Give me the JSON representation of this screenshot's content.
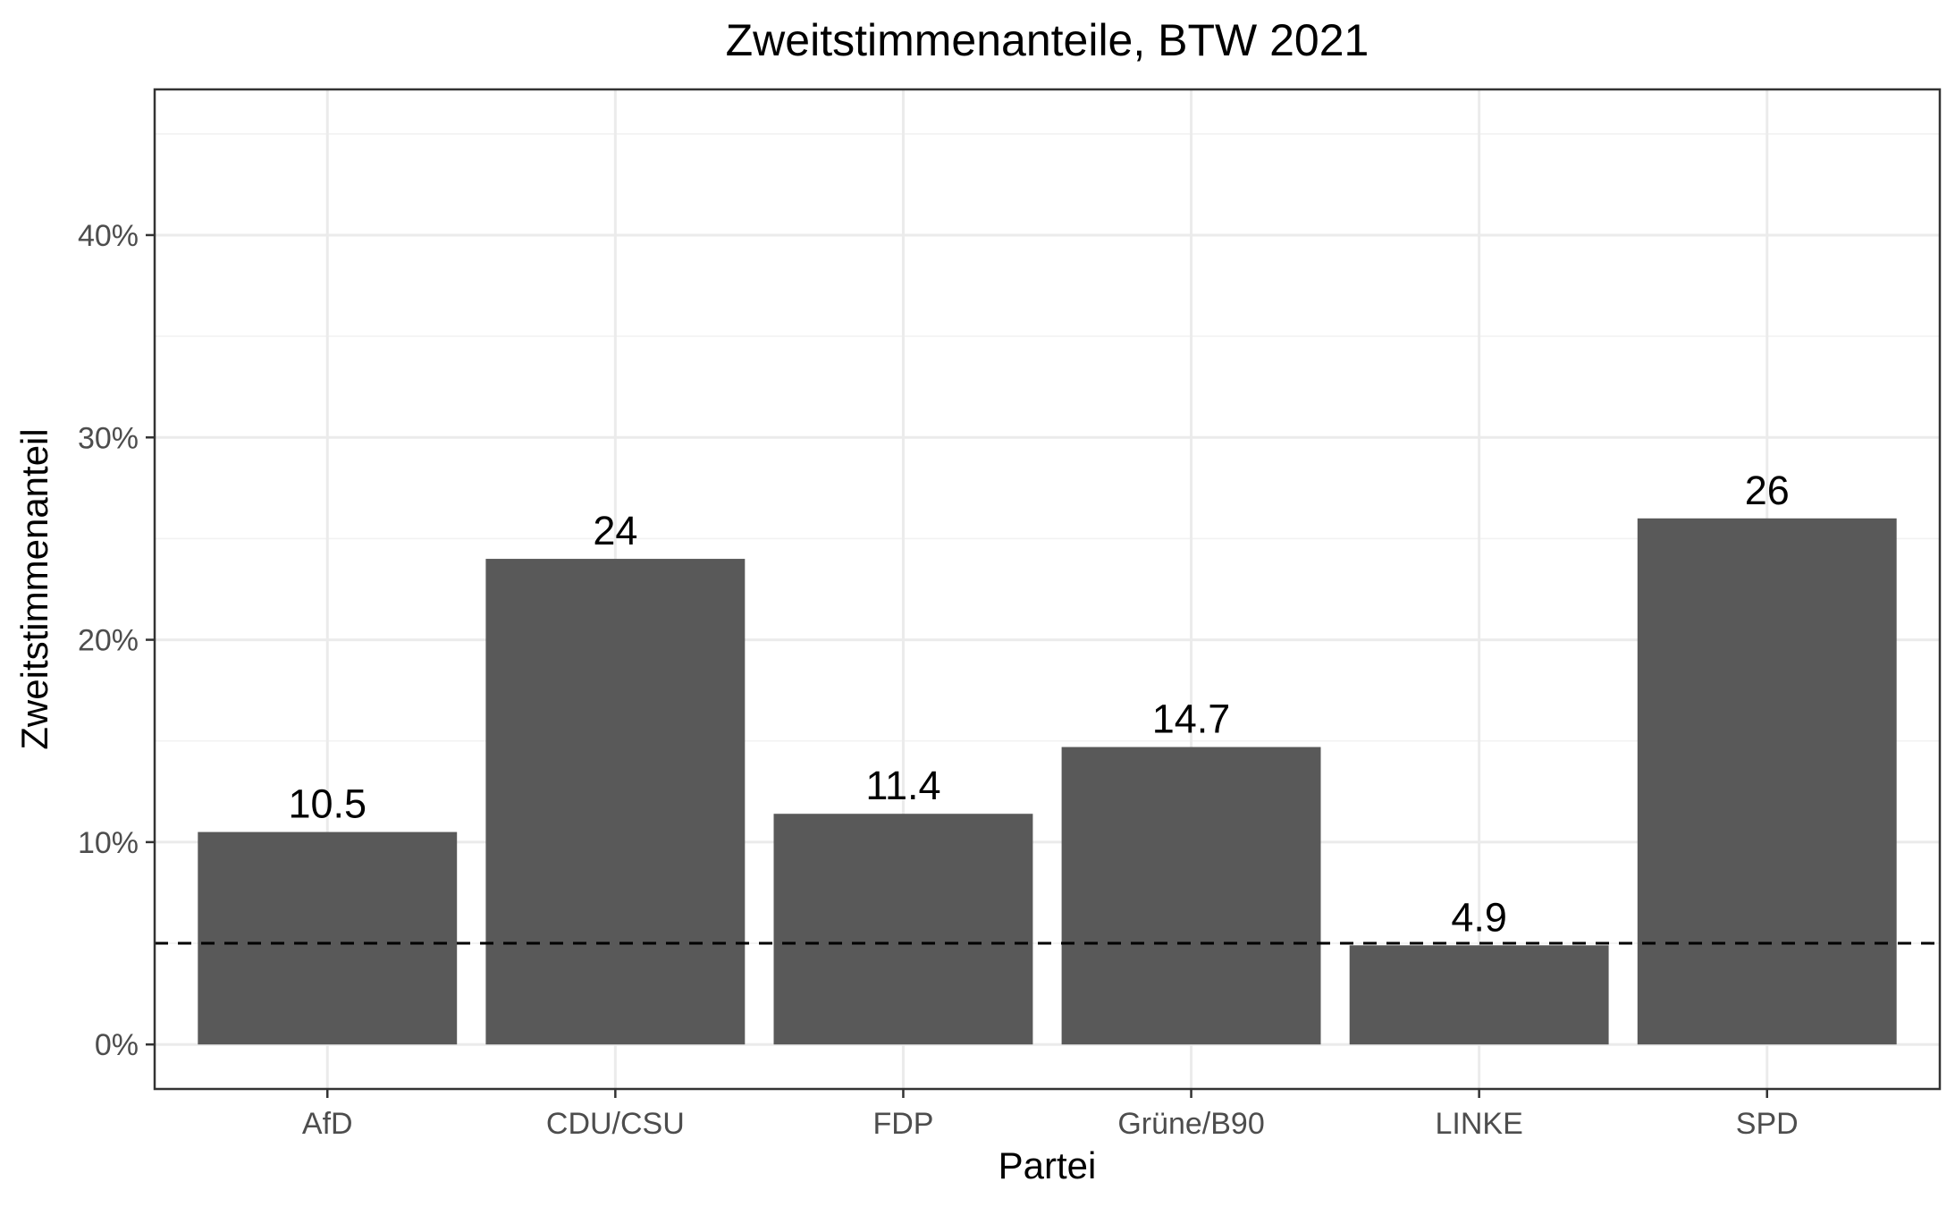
{
  "chart_data": {
    "type": "bar",
    "title": "Zweitstimmenanteile, BTW 2021",
    "xlabel": "Partei",
    "ylabel": "Zweitstimmenanteil",
    "categories": [
      "AfD",
      "CDU/CSU",
      "FDP",
      "Grüne/B90",
      "LINKE",
      "SPD"
    ],
    "values": [
      10.5,
      24,
      11.4,
      14.7,
      4.9,
      26
    ],
    "data_labels": [
      "10.5",
      "24",
      "11.4",
      "14.7",
      "4.9",
      "26"
    ],
    "ylim": [
      -2.2,
      47.2
    ],
    "yticks": [
      0,
      10,
      20,
      30,
      40
    ],
    "ytick_labels": [
      "0%",
      "10%",
      "20%",
      "30%",
      "40%"
    ],
    "threshold_line": 5,
    "threshold_style": "dashed",
    "bar_color": "#595959",
    "grid": true,
    "legend": "none"
  }
}
